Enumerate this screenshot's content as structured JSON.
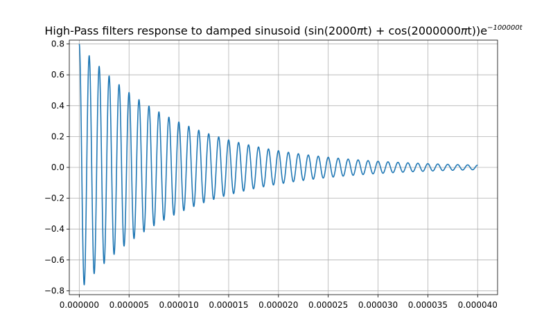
{
  "chart_data": {
    "type": "line",
    "title_prefix": "High-Pass filters response to damped sinusoid (sin(2000",
    "title_pi1": "π",
    "title_mid": "t) + cos(2000000",
    "title_pi2": "π",
    "title_suffix": "t))e",
    "title_exponent": "−100000t",
    "xlabel": "",
    "ylabel": "",
    "xlim": [
      -1e-06,
      4.2e-05
    ],
    "ylim": [
      -0.825,
      0.825
    ],
    "grid": true,
    "x_ticks": [
      {
        "value": 0.0,
        "label": "0.000000"
      },
      {
        "value": 5e-06,
        "label": "0.000005"
      },
      {
        "value": 1e-05,
        "label": "0.000010"
      },
      {
        "value": 1.5e-05,
        "label": "0.000015"
      },
      {
        "value": 2e-05,
        "label": "0.000020"
      },
      {
        "value": 2.5e-05,
        "label": "0.000025"
      },
      {
        "value": 3e-05,
        "label": "0.000030"
      },
      {
        "value": 3.5e-05,
        "label": "0.000035"
      },
      {
        "value": 4e-05,
        "label": "0.000040"
      }
    ],
    "y_ticks": [
      {
        "value": 0.8,
        "label": "0.8"
      },
      {
        "value": 0.6,
        "label": "0.6"
      },
      {
        "value": 0.4,
        "label": "0.4"
      },
      {
        "value": 0.2,
        "label": "0.2"
      },
      {
        "value": 0.0,
        "label": "0.0"
      },
      {
        "value": -0.2,
        "label": "−0.2"
      },
      {
        "value": -0.4,
        "label": "−0.4"
      },
      {
        "value": -0.6,
        "label": "−0.6"
      },
      {
        "value": -0.8,
        "label": "−0.8"
      }
    ],
    "series": [
      {
        "color": "#1f77b4",
        "x_start": 0.0,
        "x_end": 4e-05,
        "amplitude": 0.8,
        "decay_rate": 100000,
        "frequency_hz": 1000000
      }
    ]
  }
}
